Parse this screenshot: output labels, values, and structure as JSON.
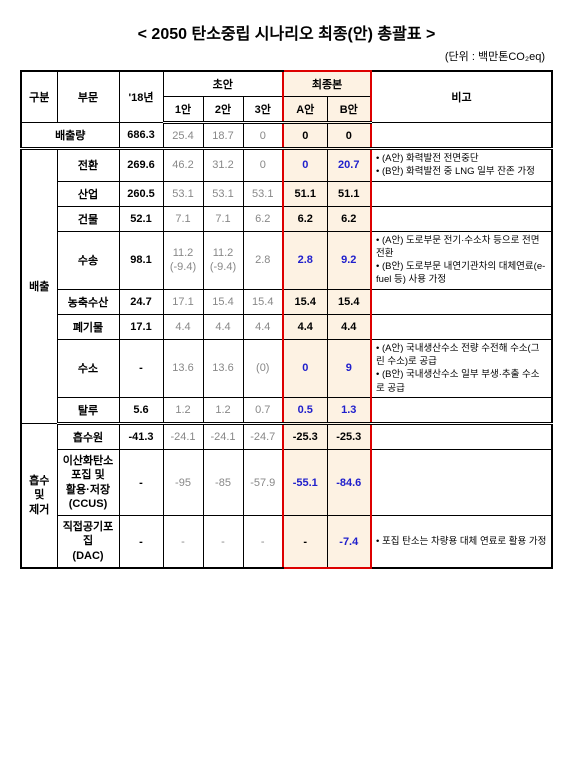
{
  "title": "< 2050 탄소중립 시나리오 최종(안) 총괄표 >",
  "unit": "(단위 : 백만톤CO₂eq)",
  "headers": {
    "gubun": "구분",
    "sector": "부문",
    "y18": "'18년",
    "draft": "초안",
    "final": "최종본",
    "d1": "1안",
    "d2": "2안",
    "d3": "3안",
    "fA": "A안",
    "fB": "B안",
    "remark": "비고"
  },
  "rows": {
    "emission_total": {
      "label": "배출량",
      "y18": "686.3",
      "d1": "25.4",
      "d2": "18.7",
      "d3": "0",
      "fA": "0",
      "fB": "0",
      "remark": ""
    },
    "emission_group": "배출",
    "conv": {
      "label": "전환",
      "y18": "269.6",
      "d1": "46.2",
      "d2": "31.2",
      "d3": "0",
      "fA": "0",
      "fB": "20.7",
      "remark": "• (A안) 화력발전 전면중단\n• (B안) 화력발전 중 LNG 일부 잔존 가정"
    },
    "ind": {
      "label": "산업",
      "y18": "260.5",
      "d1": "53.1",
      "d2": "53.1",
      "d3": "53.1",
      "fA": "51.1",
      "fB": "51.1",
      "remark": ""
    },
    "bldg": {
      "label": "건물",
      "y18": "52.1",
      "d1": "7.1",
      "d2": "7.1",
      "d3": "6.2",
      "fA": "6.2",
      "fB": "6.2",
      "remark": ""
    },
    "trans": {
      "label": "수송",
      "y18": "98.1",
      "d1": "11.2\n(-9.4)",
      "d2": "11.2\n(-9.4)",
      "d3": "2.8",
      "fA": "2.8",
      "fB": "9.2",
      "remark": "• (A안) 도로부문 전기·수소차 등으로 전면 전환\n• (B안) 도로부문 내연기관차의 대체연료(e-fuel 등) 사용 가정"
    },
    "agri": {
      "label": "농축수산",
      "y18": "24.7",
      "d1": "17.1",
      "d2": "15.4",
      "d3": "15.4",
      "fA": "15.4",
      "fB": "15.4",
      "remark": ""
    },
    "waste": {
      "label": "폐기물",
      "y18": "17.1",
      "d1": "4.4",
      "d2": "4.4",
      "d3": "4.4",
      "fA": "4.4",
      "fB": "4.4",
      "remark": ""
    },
    "h2": {
      "label": "수소",
      "y18": "-",
      "d1": "13.6",
      "d2": "13.6",
      "d3": "(0)",
      "fA": "0",
      "fB": "9",
      "remark": "• (A안) 국내생산수소 전량 수전해 수소(그린 수소)로 공급\n• (B안) 국내생산수소 일부 부생·추출 수소로 공급"
    },
    "fugitive": {
      "label": "탈루",
      "y18": "5.6",
      "d1": "1.2",
      "d2": "1.2",
      "d3": "0.7",
      "fA": "0.5",
      "fB": "1.3",
      "remark": ""
    },
    "sink_group": "흡수\n및\n제거",
    "sink": {
      "label": "흡수원",
      "y18": "-41.3",
      "d1": "-24.1",
      "d2": "-24.1",
      "d3": "-24.7",
      "fA": "-25.3",
      "fB": "-25.3",
      "remark": ""
    },
    "ccus": {
      "label": "이산화탄소\n포집 및\n활용·저장\n(CCUS)",
      "y18": "-",
      "d1": "-95",
      "d2": "-85",
      "d3": "-57.9",
      "fA": "-55.1",
      "fB": "-84.6",
      "remark": ""
    },
    "dac": {
      "label": "직접공기포집\n(DAC)",
      "y18": "-",
      "d1": "-",
      "d2": "-",
      "d3": "-",
      "fA": "-",
      "fB": "-7.4",
      "remark": "• 포집 탄소는 차량용 대체 연료로 활용 가정"
    }
  }
}
